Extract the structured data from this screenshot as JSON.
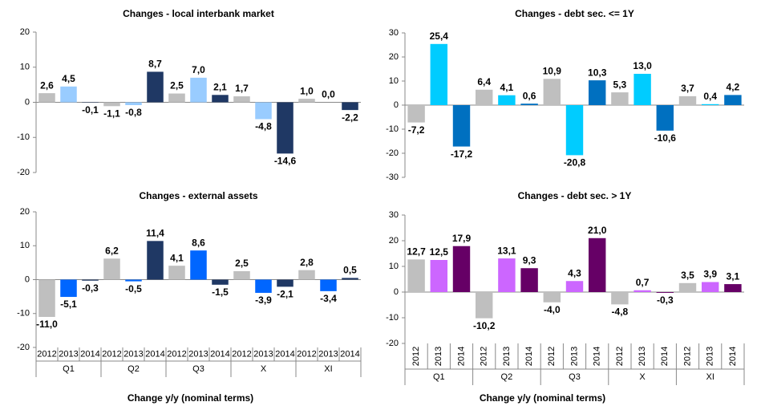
{
  "chart_data": [
    {
      "type": "bar",
      "title": "Changes - local interbank market",
      "ylim": [
        -20,
        20
      ],
      "yticks": [
        -20,
        -10,
        0,
        10,
        20
      ],
      "series": [
        {
          "color": "#bfbfbf",
          "values": [
            2.6,
            -1.1,
            2.5,
            1.7,
            1.0
          ],
          "value_labels": [
            "2,6",
            "-1,1",
            "2,5",
            "1,7",
            "1,0"
          ]
        },
        {
          "color": "#99ccff",
          "values": [
            4.5,
            -0.8,
            7.0,
            -4.8,
            0.0
          ],
          "value_labels": [
            "4,5",
            "-0,8",
            "7,0",
            "-4,8",
            "0,0"
          ]
        },
        {
          "color": "#1f3864",
          "values": [
            -0.1,
            8.7,
            2.1,
            -14.6,
            -2.2
          ],
          "value_labels": [
            "-0,1",
            "8,7",
            "2,1",
            "-14,6",
            "-2,2"
          ]
        }
      ]
    },
    {
      "type": "bar",
      "title": "Changes - debt sec. <= 1Y",
      "ylim": [
        -30,
        30
      ],
      "yticks": [
        -30,
        -20,
        -10,
        0,
        10,
        20,
        30
      ],
      "series": [
        {
          "color": "#bfbfbf",
          "values": [
            -7.2,
            6.4,
            10.9,
            5.3,
            3.7
          ],
          "value_labels": [
            "-7,2",
            "6,4",
            "10,9",
            "5,3",
            "3,7"
          ]
        },
        {
          "color": "#00ccff",
          "values": [
            25.4,
            4.1,
            -20.8,
            13.0,
            0.4
          ],
          "value_labels": [
            "25,4",
            "4,1",
            "-20,8",
            "13,0",
            "0,4"
          ]
        },
        {
          "color": "#0070c0",
          "values": [
            -17.2,
            0.6,
            10.3,
            -10.6,
            4.2
          ],
          "value_labels": [
            "-17,2",
            "0,6",
            "10,3",
            "-10,6",
            "4,2"
          ]
        }
      ]
    },
    {
      "type": "bar",
      "title": "Changes - external assets",
      "ylim": [
        -20,
        20
      ],
      "yticks": [
        -20,
        -10,
        0,
        10,
        20
      ],
      "categories": [
        "Q1",
        "Q2",
        "Q3",
        "X",
        "XI"
      ],
      "x_label": "Change y/y (nominal terms)",
      "series": [
        {
          "name": "2012",
          "color": "#bfbfbf",
          "values": [
            -11.0,
            6.2,
            4.1,
            2.5,
            2.8
          ],
          "value_labels": [
            "-11,0",
            "6,2",
            "4,1",
            "2,5",
            "2,8"
          ]
        },
        {
          "name": "2013",
          "color": "#0066ff",
          "values": [
            -5.1,
            -0.5,
            8.6,
            -3.9,
            -3.4
          ],
          "value_labels": [
            "-5,1",
            "-0,5",
            "8,6",
            "-3,9",
            "-3,4"
          ]
        },
        {
          "name": "2014",
          "color": "#1f3864",
          "values": [
            -0.3,
            11.4,
            -1.5,
            -2.1,
            0.5
          ],
          "value_labels": [
            "-0,3",
            "11,4",
            "-1,5",
            "-2,1",
            "0,5"
          ]
        }
      ]
    },
    {
      "type": "bar",
      "title": "Changes - debt sec. > 1Y",
      "ylim": [
        -20,
        30
      ],
      "yticks": [
        -20,
        -10,
        0,
        10,
        20,
        30
      ],
      "categories": [
        "Q1",
        "Q2",
        "Q3",
        "X",
        "XI"
      ],
      "x_label": "Change y/y (nominal terms)",
      "series": [
        {
          "name": "2012",
          "color": "#bfbfbf",
          "values": [
            12.7,
            -10.2,
            -4.0,
            -4.8,
            3.5
          ],
          "value_labels": [
            "12,7",
            "-10,2",
            "-4,0",
            "-4,8",
            "3,5"
          ]
        },
        {
          "name": "2013",
          "color": "#cc66ff",
          "values": [
            12.5,
            13.1,
            4.3,
            0.7,
            3.9
          ],
          "value_labels": [
            "12,5",
            "13,1",
            "4,3",
            "0,7",
            "3,9"
          ]
        },
        {
          "name": "2014",
          "color": "#660066",
          "values": [
            17.9,
            9.3,
            21.0,
            -0.3,
            3.1
          ],
          "value_labels": [
            "17,9",
            "9,3",
            "21,0",
            "-0,3",
            "3,1"
          ]
        }
      ]
    }
  ]
}
